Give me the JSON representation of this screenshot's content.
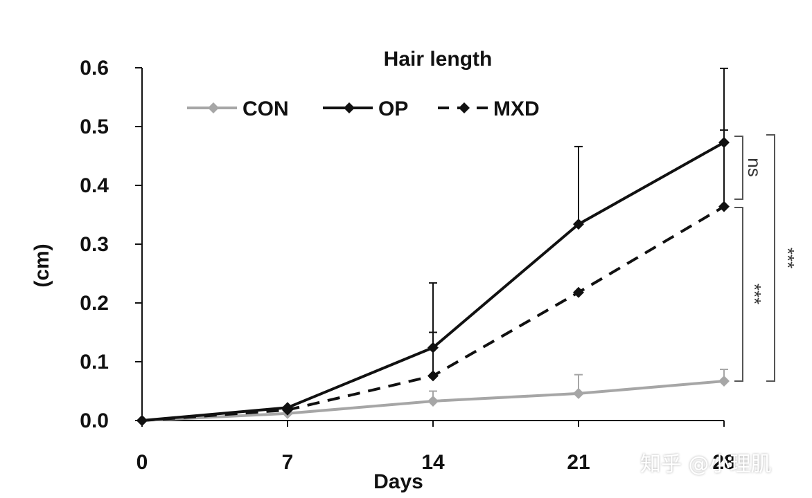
{
  "watermark": "知乎 @小理肌",
  "colors": {
    "con": "#a6a6a6",
    "op": "#111111",
    "mxd": "#111111",
    "axis": "#111111",
    "bracket": "#555555"
  },
  "chart_data": {
    "type": "line",
    "title": "Hair length",
    "xlabel": "Days",
    "ylabel": "(cm)",
    "x": [
      0,
      7,
      14,
      21,
      28
    ],
    "x_tick_labels": [
      "0",
      "7",
      "14",
      "21",
      "28"
    ],
    "y_tick_labels": [
      "0.0",
      "0.1",
      "0.2",
      "0.3",
      "0.4",
      "0.5",
      "0.6"
    ],
    "xlim": [
      0,
      28
    ],
    "ylim": [
      0,
      0.6
    ],
    "grid": false,
    "legend_position": "top",
    "series": [
      {
        "name": "CON",
        "style": "solid",
        "values": [
          0.0,
          0.012,
          0.033,
          0.046,
          0.067
        ],
        "error_upper": [
          0.0,
          0.0,
          0.017,
          0.032,
          0.02
        ]
      },
      {
        "name": "OP",
        "style": "solid",
        "values": [
          0.0,
          0.022,
          0.124,
          0.334,
          0.473
        ],
        "error_upper": [
          0.0,
          0.0,
          0.11,
          0.132,
          0.126
        ]
      },
      {
        "name": "MXD",
        "style": "dashed",
        "values": [
          0.0,
          0.018,
          0.076,
          0.218,
          0.364
        ],
        "error_upper": [
          0.0,
          0.0,
          0.074,
          0.0,
          0.13
        ]
      }
    ],
    "annotations": [
      {
        "text": "ns",
        "between": [
          "OP",
          "MXD"
        ]
      },
      {
        "text": "***",
        "between": [
          "MXD",
          "CON"
        ]
      },
      {
        "text": "***",
        "between": [
          "OP",
          "CON"
        ]
      }
    ]
  }
}
